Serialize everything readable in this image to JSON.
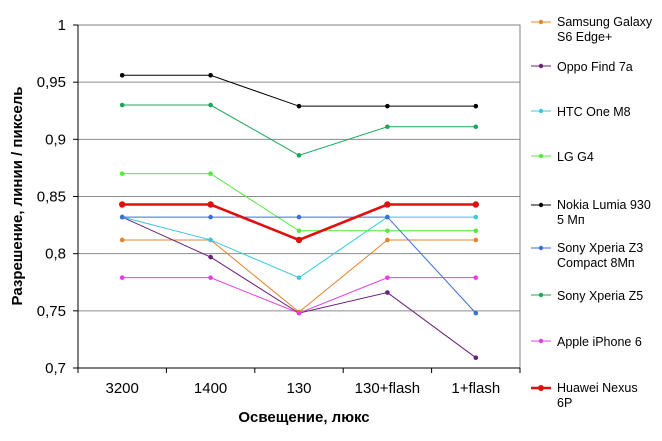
{
  "chart_data": {
    "type": "line",
    "title": "",
    "xlabel": "Освещение,  люкс",
    "ylabel": "Разрешение,  линии / пиксель",
    "categories": [
      "3200",
      "1400",
      "130",
      "130+flash",
      "1+flash"
    ],
    "ylim": [
      0.7,
      1.0
    ],
    "yticks": [
      "0,7",
      "0,75",
      "0,8",
      "0,85",
      "0,9",
      "0,95",
      "1"
    ],
    "yticks_values": [
      0.7,
      0.75,
      0.8,
      0.85,
      0.9,
      0.95,
      1.0
    ],
    "grid": "horizontal",
    "legend_position": "right",
    "series": [
      {
        "name": "Samsung Galaxy S6 Edge+",
        "label_lines": [
          "Samsung Galaxy",
          "S6 Edge+"
        ],
        "color": "#e4832b",
        "values": [
          0.812,
          0.812,
          0.749,
          0.812,
          0.812
        ]
      },
      {
        "name": "Oppo Find 7a",
        "label_lines": [
          "Oppo Find 7a"
        ],
        "color": "#6b1f7a",
        "values": [
          0.832,
          0.797,
          0.748,
          0.766,
          0.709
        ]
      },
      {
        "name": "HTC One M8",
        "label_lines": [
          "HTC One M8"
        ],
        "color": "#38c8e0",
        "values": [
          0.832,
          0.812,
          0.779,
          0.832,
          0.832
        ]
      },
      {
        "name": "LG G4",
        "label_lines": [
          "LG G4"
        ],
        "color": "#55e840",
        "values": [
          0.87,
          0.87,
          0.82,
          0.82,
          0.82
        ]
      },
      {
        "name": "Nokia Lumia 930 5 Мп",
        "label_lines": [
          "Nokia Lumia 930",
          "5 Мп"
        ],
        "color": "#000000",
        "values": [
          0.956,
          0.956,
          0.929,
          0.929,
          0.929
        ]
      },
      {
        "name": "Sony Xperia Z3 Compact 8Мп",
        "label_lines": [
          "Sony Xperia Z3",
          "Compact 8Мп"
        ],
        "color": "#3a6fd8",
        "values": [
          0.832,
          0.832,
          0.832,
          0.832,
          0.748
        ]
      },
      {
        "name": "Sony Xperia Z5",
        "label_lines": [
          "Sony Xperia Z5"
        ],
        "color": "#1aa85a",
        "values": [
          0.93,
          0.93,
          0.886,
          0.911,
          0.911
        ]
      },
      {
        "name": "Apple iPhone 6",
        "label_lines": [
          "Apple iPhone 6"
        ],
        "color": "#e040e0",
        "values": [
          0.779,
          0.779,
          0.748,
          0.779,
          0.779
        ]
      },
      {
        "name": "Huawei Nexus 6P",
        "label_lines": [
          "Huawei Nexus",
          "6P"
        ],
        "color": "#e01010",
        "values": [
          0.843,
          0.843,
          0.812,
          0.843,
          0.843
        ],
        "bold": true
      }
    ]
  }
}
